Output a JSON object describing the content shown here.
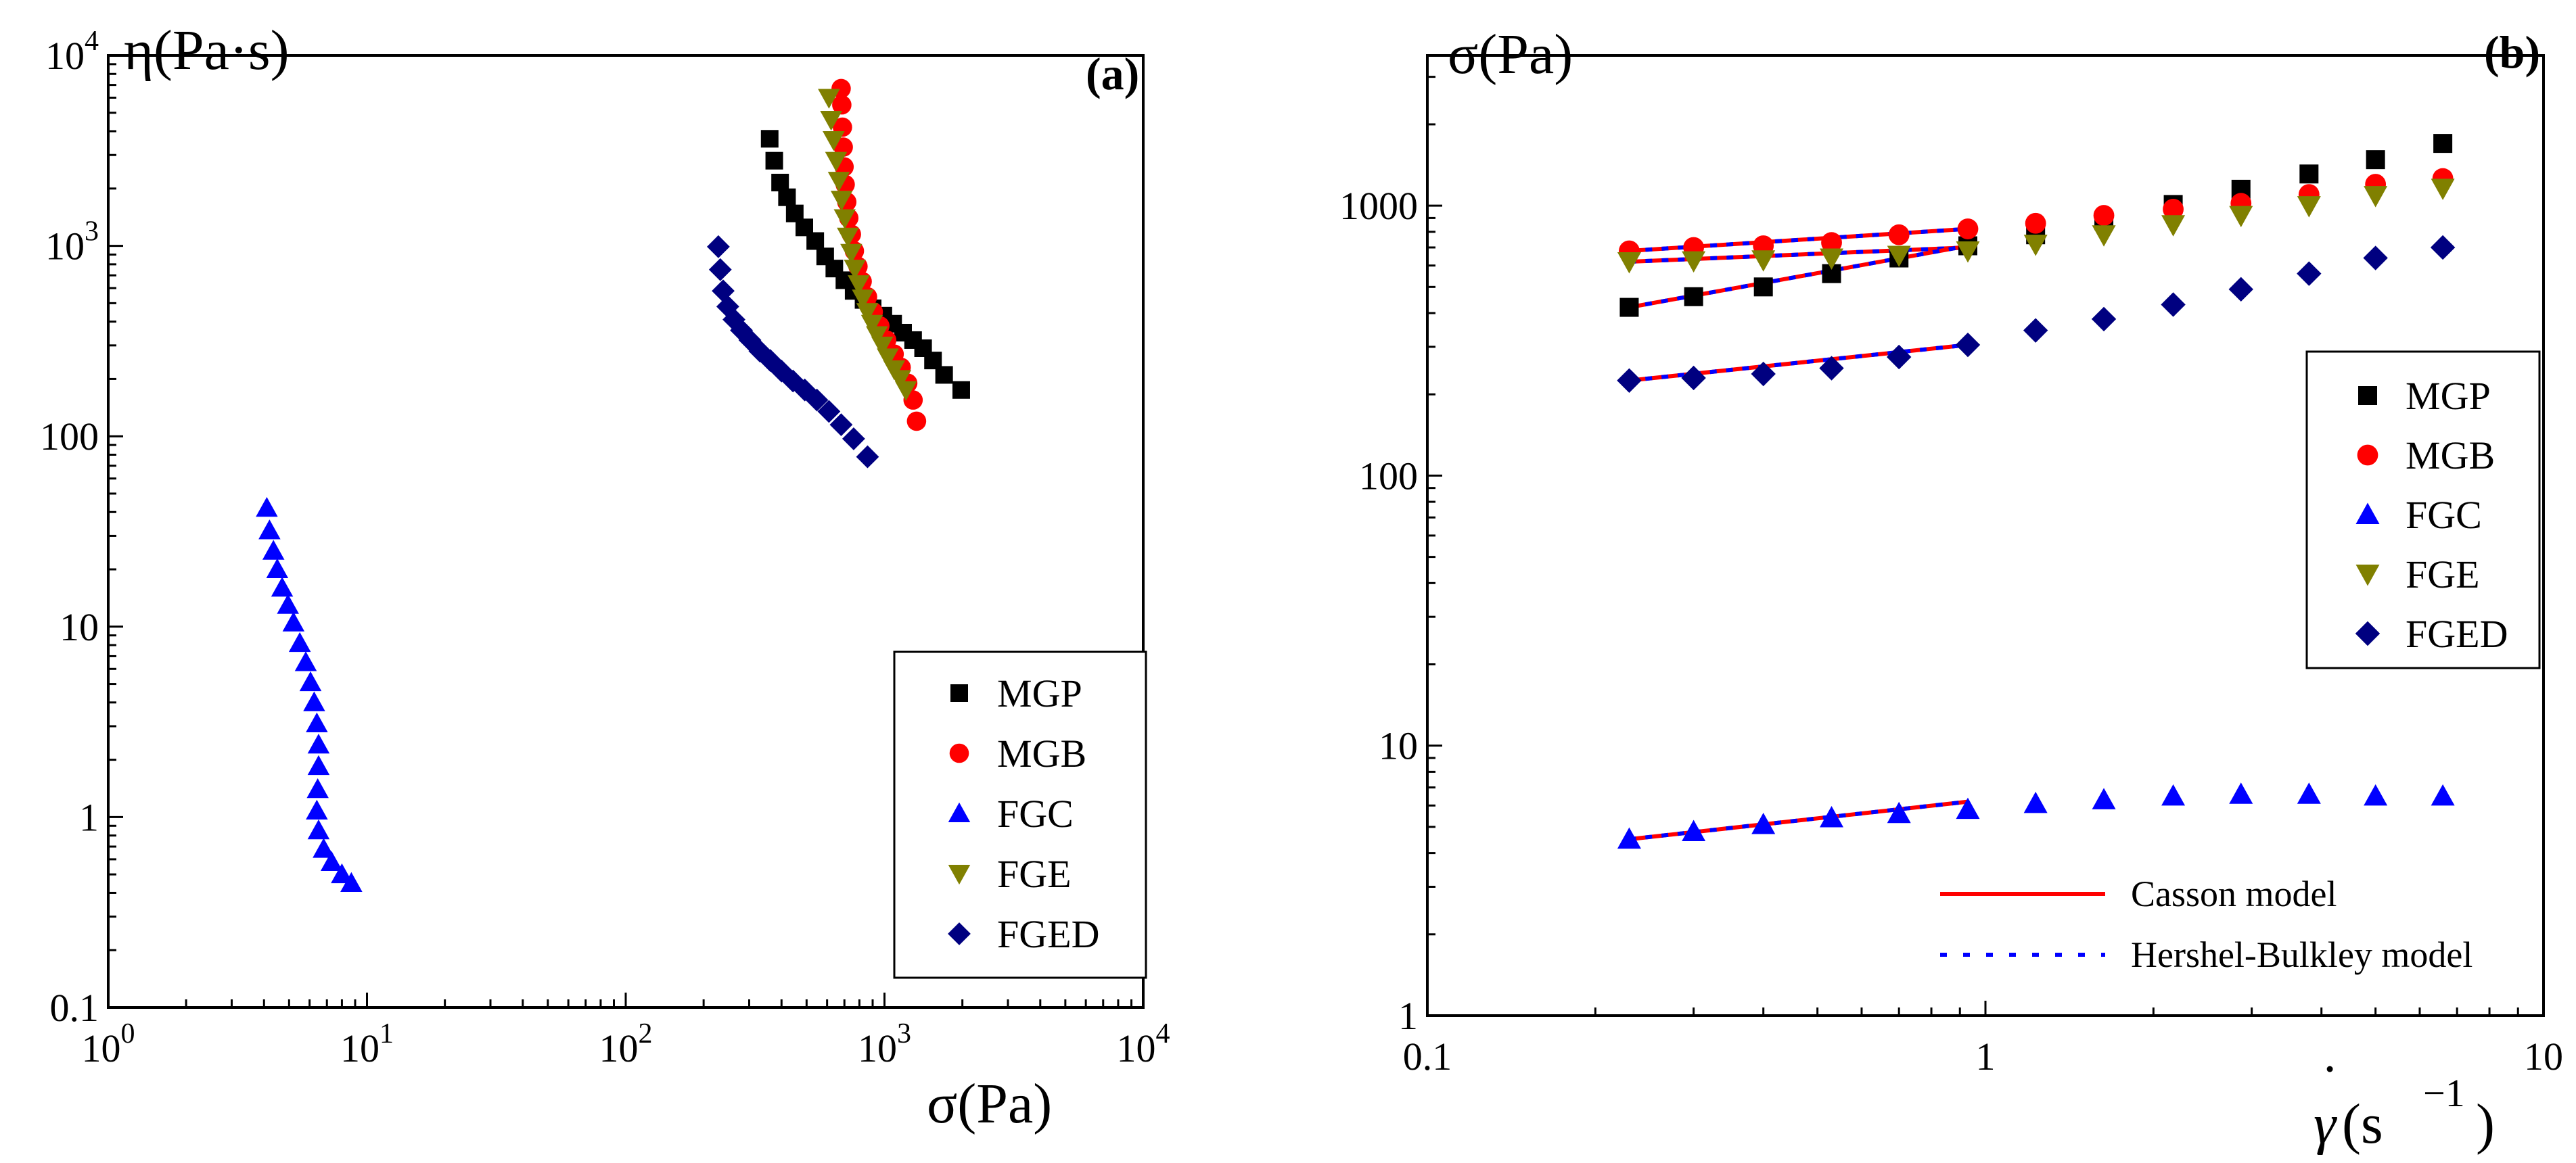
{
  "chart_data": [
    {
      "type": "scatter",
      "panel": "(a)",
      "xscale": "log",
      "yscale": "log",
      "xlim": [
        1,
        10000
      ],
      "ylim": [
        0.1,
        10000
      ],
      "ylabel": "η(Pa·s)",
      "xlabel": "σ(Pa)",
      "x_ticks": [
        {
          "v": 1,
          "base": "10",
          "exp": "0"
        },
        {
          "v": 10,
          "base": "10",
          "exp": "1"
        },
        {
          "v": 100,
          "base": "10",
          "exp": "2"
        },
        {
          "v": 1000,
          "base": "10",
          "exp": "3"
        },
        {
          "v": 10000,
          "base": "10",
          "exp": "4"
        }
      ],
      "y_ticks": [
        {
          "v": 0.1,
          "label": "0.1"
        },
        {
          "v": 1,
          "label": "1"
        },
        {
          "v": 10,
          "label": "10"
        },
        {
          "v": 100,
          "label": "100"
        },
        {
          "v": 1000,
          "base": "10",
          "exp": "3"
        },
        {
          "v": 10000,
          "base": "10",
          "exp": "4"
        }
      ],
      "legend_position": "bottom-right",
      "series": [
        {
          "name": "MGP",
          "marker": "square",
          "color": "#000000",
          "x": [
            360,
            375,
            395,
            420,
            450,
            490,
            540,
            590,
            640,
            700,
            760,
            830,
            900,
            990,
            1080,
            1180,
            1290,
            1410,
            1540,
            1700,
            1980
          ],
          "y": [
            3650,
            2800,
            2150,
            1800,
            1480,
            1250,
            1060,
            880,
            760,
            660,
            580,
            520,
            470,
            430,
            390,
            350,
            320,
            290,
            250,
            210,
            175
          ]
        },
        {
          "name": "MGB",
          "marker": "circle",
          "color": "#ff0000",
          "x": [
            680,
            684,
            688,
            693,
            698,
            705,
            715,
            728,
            745,
            765,
            790,
            820,
            860,
            905,
            960,
            1020,
            1090,
            1160,
            1230,
            1290,
            1330
          ],
          "y": [
            6700,
            5500,
            4200,
            3300,
            2600,
            2100,
            1700,
            1400,
            1150,
            940,
            780,
            650,
            540,
            450,
            380,
            320,
            270,
            230,
            190,
            155,
            120
          ]
        },
        {
          "name": "FGE",
          "marker": "triangle-down",
          "color": "#808000",
          "x": [
            610,
            622,
            636,
            650,
            666,
            683,
            702,
            722,
            744,
            768,
            795,
            825,
            858,
            895,
            935,
            980,
            1030,
            1090,
            1150,
            1210
          ],
          "y": [
            6000,
            4600,
            3600,
            2800,
            2200,
            1750,
            1400,
            1120,
            920,
            760,
            630,
            530,
            450,
            390,
            340,
            300,
            260,
            225,
            200,
            175
          ]
        },
        {
          "name": "FGED",
          "marker": "diamond",
          "color": "#000080",
          "x": [
            228,
            232,
            238,
            248,
            262,
            280,
            302,
            330,
            362,
            400,
            443,
            492,
            548,
            610,
            680,
            760,
            860
          ],
          "y": [
            990,
            750,
            580,
            480,
            410,
            360,
            320,
            280,
            250,
            220,
            195,
            175,
            155,
            135,
            115,
            97,
            78
          ]
        },
        {
          "name": "FGC",
          "marker": "triangle-up",
          "color": "#0000ff",
          "x": [
            4.1,
            4.2,
            4.35,
            4.5,
            4.7,
            4.95,
            5.2,
            5.5,
            5.8,
            6.05,
            6.25,
            6.4,
            6.5,
            6.5,
            6.45,
            6.4,
            6.5,
            6.8,
            7.3,
            8.0,
            8.7
          ],
          "y": [
            42,
            32,
            25,
            20,
            16,
            13,
            10.5,
            8.2,
            6.5,
            5.1,
            4.0,
            3.1,
            2.4,
            1.85,
            1.4,
            1.08,
            0.85,
            0.68,
            0.58,
            0.5,
            0.45
          ]
        }
      ]
    },
    {
      "type": "scatter",
      "panel": "(b)",
      "xscale": "log",
      "yscale": "log",
      "xlim": [
        0.1,
        10
      ],
      "ylim": [
        1,
        3600
      ],
      "ylabel": "σ(Pa)",
      "xlabel_main": "γ",
      "xlabel_dot": "˙",
      "xlabel_paren": "(s",
      "xlabel_exp": "−1",
      "xlabel_close": ")",
      "x_ticks": [
        {
          "v": 0.1,
          "label": "0.1"
        },
        {
          "v": 1,
          "label": "1"
        },
        {
          "v": 10,
          "label": "10"
        }
      ],
      "y_ticks": [
        {
          "v": 1,
          "label": "1"
        },
        {
          "v": 10,
          "label": "10"
        },
        {
          "v": 100,
          "label": "100"
        },
        {
          "v": 1000,
          "label": "1000"
        }
      ],
      "legend_position": "right",
      "series": [
        {
          "name": "MGP",
          "marker": "square",
          "color": "#000000",
          "x": [
            0.23,
            0.3,
            0.4,
            0.53,
            0.7,
            0.93,
            1.23,
            1.63,
            2.17,
            2.87,
            3.8,
            5.0,
            6.6
          ],
          "y": [
            420,
            460,
            500,
            560,
            640,
            710,
            780,
            880,
            1010,
            1150,
            1310,
            1480,
            1700
          ]
        },
        {
          "name": "MGB",
          "marker": "circle",
          "color": "#ff0000",
          "x": [
            0.23,
            0.3,
            0.4,
            0.53,
            0.7,
            0.93,
            1.23,
            1.63,
            2.17,
            2.87,
            3.8,
            5.0,
            6.6
          ],
          "y": [
            680,
            700,
            710,
            730,
            780,
            820,
            860,
            920,
            970,
            1020,
            1100,
            1200,
            1260
          ]
        },
        {
          "name": "FGC",
          "marker": "triangle-up",
          "color": "#0000ff",
          "x": [
            0.23,
            0.3,
            0.4,
            0.53,
            0.7,
            0.93,
            1.23,
            1.63,
            2.17,
            2.87,
            3.8,
            5.0,
            6.6
          ],
          "y": [
            4.5,
            4.8,
            5.1,
            5.4,
            5.6,
            5.8,
            6.1,
            6.3,
            6.5,
            6.6,
            6.6,
            6.5,
            6.5
          ]
        },
        {
          "name": "FGE",
          "marker": "triangle-down",
          "color": "#808000",
          "x": [
            0.23,
            0.3,
            0.4,
            0.53,
            0.7,
            0.93,
            1.23,
            1.63,
            2.17,
            2.87,
            3.8,
            5.0,
            6.6
          ],
          "y": [
            620,
            625,
            630,
            640,
            655,
            680,
            720,
            780,
            850,
            920,
            1000,
            1090,
            1160
          ]
        },
        {
          "name": "FGED",
          "marker": "diamond",
          "color": "#000080",
          "x": [
            0.23,
            0.3,
            0.4,
            0.53,
            0.7,
            0.93,
            1.23,
            1.63,
            2.17,
            2.87,
            3.8,
            5.0,
            6.6
          ],
          "y": [
            225,
            230,
            238,
            250,
            275,
            305,
            345,
            380,
            430,
            490,
            560,
            640,
            700
          ]
        }
      ],
      "fits": [
        {
          "x": [
            0.23,
            0.93
          ],
          "y": [
            680,
            820
          ]
        },
        {
          "x": [
            0.23,
            0.93
          ],
          "y": [
            620,
            700
          ]
        },
        {
          "x": [
            0.23,
            0.93
          ],
          "y": [
            420,
            710
          ]
        },
        {
          "x": [
            0.23,
            0.93
          ],
          "y": [
            225,
            305
          ]
        },
        {
          "x": [
            0.23,
            0.93
          ],
          "y": [
            4.5,
            6.2
          ]
        }
      ],
      "fit_legend": [
        {
          "name": "Casson model",
          "style": "solid",
          "color": "#ff0000"
        },
        {
          "name": "Hershel-Bulkley model",
          "style": "dotted",
          "color": "#0000ff"
        }
      ]
    }
  ]
}
